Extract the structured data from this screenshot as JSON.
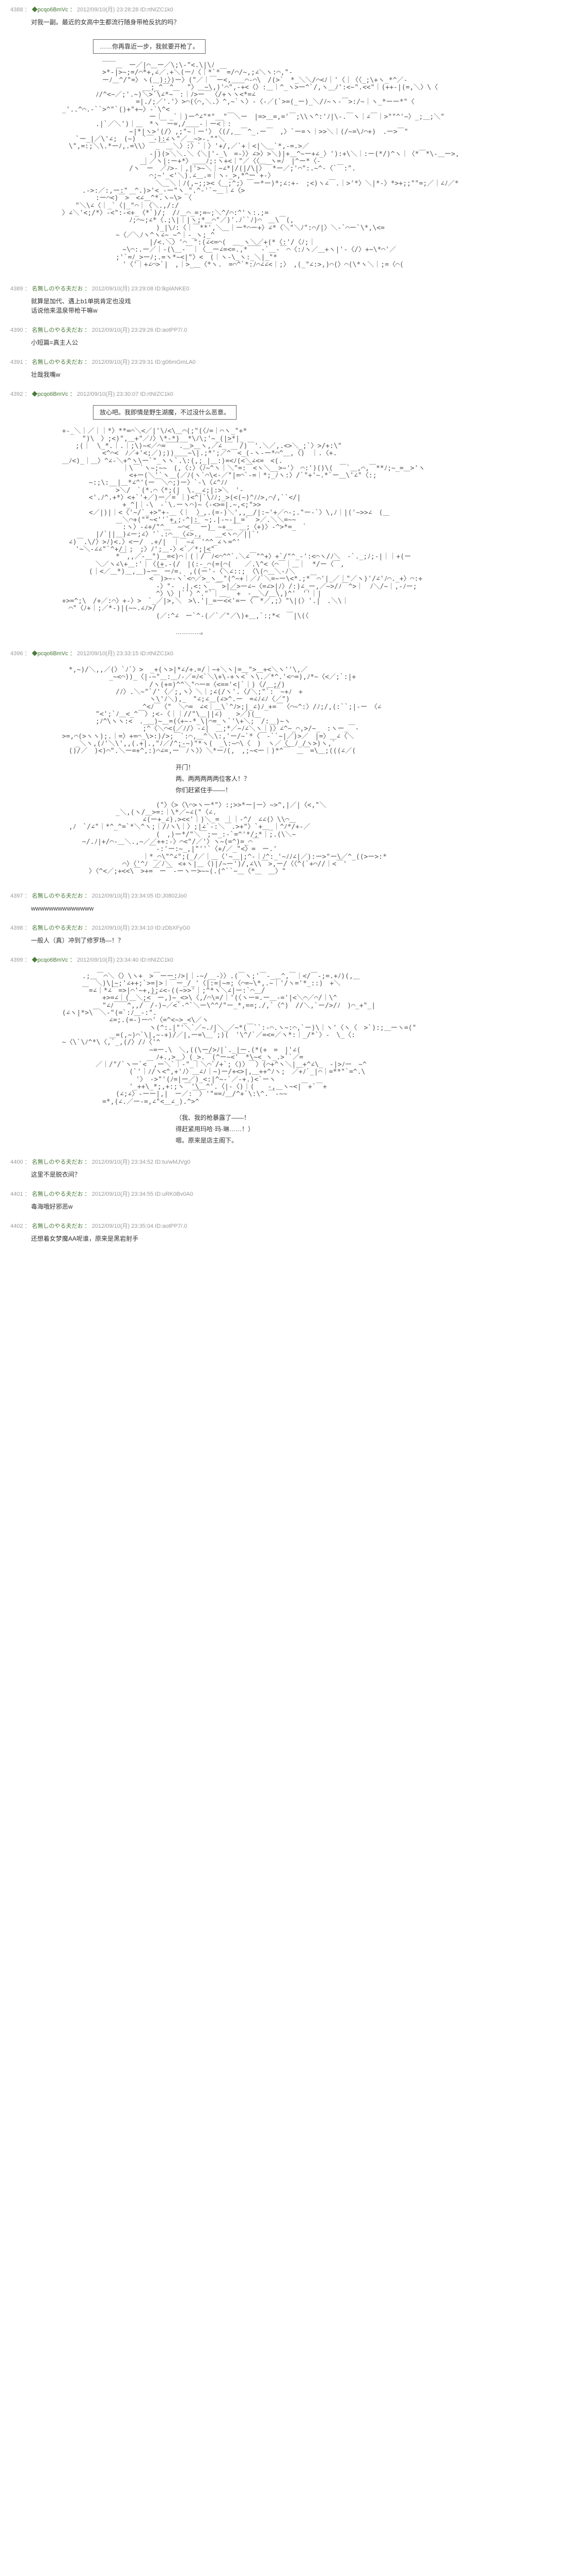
{
  "posts": [
    {
      "num": "4388",
      "trip": "◆pcqo6BmVc",
      "date": "2012/09/10(月) 23:28:28",
      "id": "ID:rtNIZC1k0",
      "body_pre": "对我一副。最近的女高中生都流行随身带枪反抗的吗？",
      "speech": "……你再靠近一步，我就要开枪了。",
      "aa_type": "girl-gun",
      "aa_height": 28
    },
    {
      "num": "4389",
      "handle": "名無しのやる夫だお",
      "date": "2012/09/10(月) 23:29:08",
      "id": "ID:lkplANKE0",
      "body": "就算是加代、遇上b1单挑肯定也没戏\n话说他来温泉带枪干嘛w"
    },
    {
      "num": "4390",
      "handle": "名無しのやる夫だお",
      "date": "2012/09/10(月) 23:29:26",
      "id": "ID:aotPP7/.0",
      "body": "小短篇=真主人公"
    },
    {
      "num": "4391",
      "handle": "名無しのやる夫だお",
      "date": "2012/09/10(月) 23:29:31",
      "id": "ID:g06mGmLA0",
      "body": "壮哉我嘴w"
    },
    {
      "num": "4392",
      "trip": "◆pcqo6BmVc",
      "date": "2012/09/10(月) 23:30:07",
      "id": "ID:rtNIZC1k0",
      "speech": "放心吧。我即情是野生湖魔，不过没什么恶意。",
      "aa_type": "action-pose",
      "aa_height": 26,
      "side_text": "…………。"
    },
    {
      "num": "4396",
      "trip": "◆pcqo6BmVc",
      "date": "2012/09/10(月) 23:33:15",
      "id": "ID:rtNIZC1k0",
      "aa_type": "surprise",
      "aa_height": 12,
      "dialogue1": "开门！",
      "dialogue2": "两、两两两两两位客人！？",
      "dialogue3": "你们赶紧住手——！",
      "aa_type2": "face-closeup",
      "aa_height2": 10
    },
    {
      "num": "4397",
      "handle": "名無しのやる夫だお",
      "date": "2012/09/10(月) 23:34:05",
      "id": "ID:J0802Jo0",
      "body": "wwwwwwwwwwwwww"
    },
    {
      "num": "4398",
      "handle": "名無しのやる夫だお",
      "date": "2012/09/10(月) 23:34:10",
      "id": "ID:zDbXFyG0",
      "body": "一般人（真）冲到了修罗场—！？"
    },
    {
      "num": "4399",
      "trip": "◆pcqo6BmVc",
      "date": "2012/09/10(月) 23:34:40",
      "id": "ID:rtNIZC1k0",
      "aa_type": "two-scene",
      "aa_height": 18,
      "dialogue1": "（我、我的枪暴露了——！",
      "dialogue2": "得赶紧用玛哈·玛-琳……！）",
      "aa_height2": 20,
      "dialogue3": "嗯。原来是店主阁下。"
    },
    {
      "num": "4400",
      "handle": "名無しのやる夫だお",
      "date": "2012/09/10(月) 23:34:52",
      "id": "ID:tu/wMJVg0",
      "body": "这里不是脱衣间？"
    },
    {
      "num": "4401",
      "handle": "名無しのやる夫だお",
      "date": "2012/09/10(月) 23:34:55",
      "id": "ID:uRK0Bv0A0",
      "body": "毒海哦好邪恶w"
    },
    {
      "num": "4402",
      "handle": "名無しのやる夫だお",
      "date": "2012/09/10(月) 23:35:04",
      "id": "ID:aotPP7/.0",
      "body": "还想着女梦魔AA呢谁，原来是黑岩射手"
    }
  ],
  "colors": {
    "meta": "#999999",
    "handle": "#4a7a3a",
    "text": "#333333",
    "aa": "#555555"
  }
}
